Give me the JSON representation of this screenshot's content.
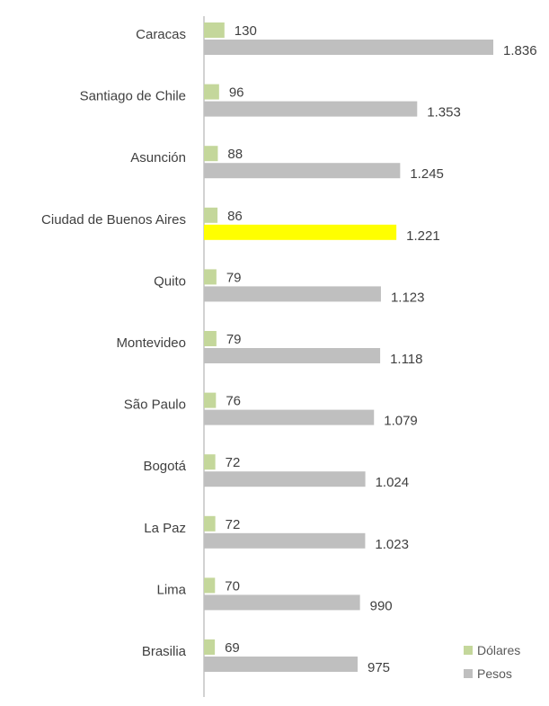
{
  "chart_data": {
    "type": "bar",
    "orientation": "horizontal",
    "categories": [
      "Caracas",
      "Santiago de Chile",
      "Asunción",
      "Ciudad de Buenos Aires",
      "Quito",
      "Montevideo",
      "São Paulo",
      "Bogotá",
      "La Paz",
      "Lima",
      "Brasilia"
    ],
    "series": [
      {
        "name": "Dólares",
        "color": "#c4d79b",
        "values": [
          130,
          96,
          88,
          86,
          79,
          79,
          76,
          72,
          72,
          70,
          69
        ],
        "labels": [
          "130",
          "96",
          "88",
          "86",
          "79",
          "79",
          "76",
          "72",
          "72",
          "70",
          "69"
        ]
      },
      {
        "name": "Pesos",
        "color": "#bfbfbf",
        "highlight_color": "#ffff00",
        "highlight_category": "Ciudad de Buenos Aires",
        "values": [
          1836,
          1353,
          1245,
          1221,
          1123,
          1118,
          1079,
          1024,
          1023,
          990,
          975
        ],
        "labels": [
          "1.836",
          "1.353",
          "1.245",
          "1.221",
          "1.123",
          "1.118",
          "1.079",
          "1.024",
          "1.023",
          "990",
          "975"
        ]
      }
    ],
    "xlim": [
      0,
      1836
    ],
    "axis_line": true,
    "grid": false,
    "legend_position": "bottom-right"
  }
}
